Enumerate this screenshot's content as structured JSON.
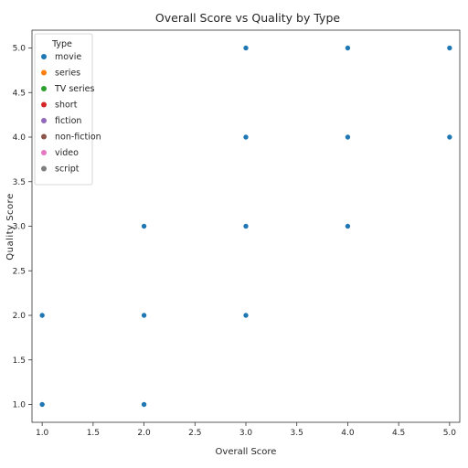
{
  "chart_data": {
    "type": "scatter",
    "title": "Overall Score vs Quality by Type",
    "xlabel": "Overall Score",
    "ylabel": "Quality Score",
    "xlim": [
      0.9,
      5.1
    ],
    "ylim": [
      0.8,
      5.2
    ],
    "x_ticks": [
      "1.0",
      "1.5",
      "2.0",
      "2.5",
      "3.0",
      "3.5",
      "4.0",
      "4.5",
      "5.0"
    ],
    "y_ticks": [
      "1.0",
      "1.5",
      "2.0",
      "2.5",
      "3.0",
      "3.5",
      "4.0",
      "4.5",
      "5.0"
    ],
    "grid": false,
    "legend": {
      "title": "Type",
      "placement": "upper-left",
      "entries": [
        {
          "label": "movie",
          "color": "#1f77b4"
        },
        {
          "label": "series",
          "color": "#ff7f0e"
        },
        {
          "label": "TV series",
          "color": "#2ca02c"
        },
        {
          "label": "short",
          "color": "#d62728"
        },
        {
          "label": "fiction",
          "color": "#9467bd"
        },
        {
          "label": "non-fiction",
          "color": "#8c564b"
        },
        {
          "label": "video",
          "color": "#e377c2"
        },
        {
          "label": "script",
          "color": "#7f7f7f"
        }
      ]
    },
    "series": [
      {
        "name": "movie",
        "color": "#1f77b4",
        "points": [
          {
            "x": 1.0,
            "y": 1.0
          },
          {
            "x": 1.0,
            "y": 2.0
          },
          {
            "x": 2.0,
            "y": 1.0
          },
          {
            "x": 2.0,
            "y": 2.0
          },
          {
            "x": 2.0,
            "y": 3.0
          },
          {
            "x": 3.0,
            "y": 2.0
          },
          {
            "x": 3.0,
            "y": 3.0
          },
          {
            "x": 3.0,
            "y": 4.0
          },
          {
            "x": 3.0,
            "y": 5.0
          },
          {
            "x": 4.0,
            "y": 3.0
          },
          {
            "x": 4.0,
            "y": 4.0
          },
          {
            "x": 4.0,
            "y": 5.0
          },
          {
            "x": 5.0,
            "y": 4.0
          },
          {
            "x": 5.0,
            "y": 5.0
          }
        ]
      }
    ]
  }
}
